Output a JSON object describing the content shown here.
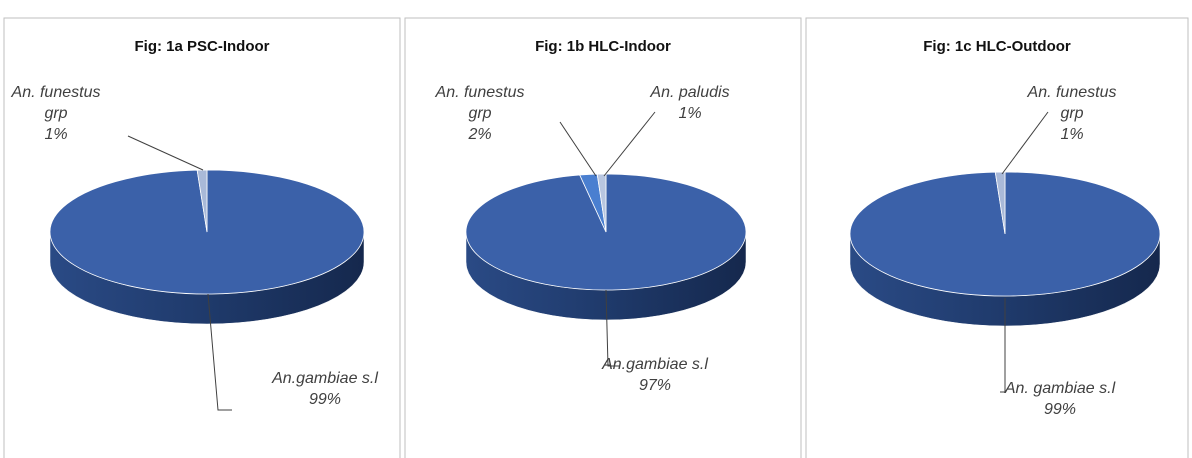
{
  "chart_data": [
    {
      "type": "pie",
      "title": "Fig: 1a PSC-Indoor",
      "categories": [
        "An.gambiae s.l",
        "An. funestus grp"
      ],
      "values": [
        99,
        1
      ],
      "value_labels": [
        "99%",
        "1%"
      ],
      "colors": [
        "#3b61a9",
        "#a9b9d8"
      ]
    },
    {
      "type": "pie",
      "title": "Fig: 1b HLC-Indoor",
      "categories": [
        "An.gambiae s.l",
        "An. funestus grp",
        "An. paludis"
      ],
      "values": [
        97,
        2,
        1
      ],
      "value_labels": [
        "97%",
        "2%",
        "1%"
      ],
      "colors": [
        "#3b61a9",
        "#4a7fd0",
        "#b8c6e0"
      ]
    },
    {
      "type": "pie",
      "title": "Fig: 1c HLC-Outdoor",
      "categories": [
        "An. gambiae s.l",
        "An. funestus grp"
      ],
      "values": [
        99,
        1
      ],
      "value_labels": [
        "99%",
        "1%"
      ],
      "colors": [
        "#3b61a9",
        "#a9b9d8"
      ]
    }
  ]
}
